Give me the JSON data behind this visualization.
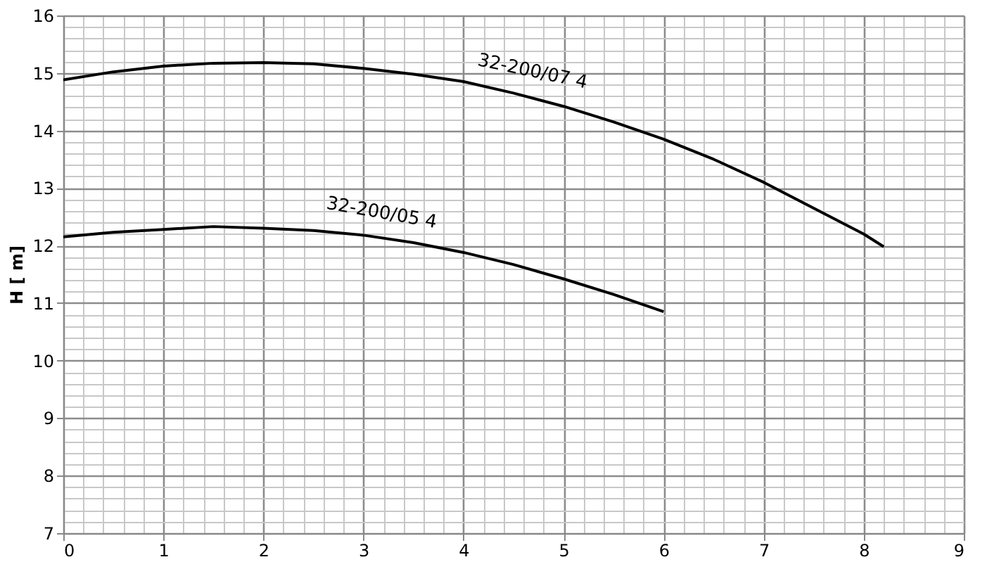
{
  "chart_data": {
    "type": "line",
    "ylabel": "H [ m]",
    "xlim": [
      0,
      9
    ],
    "xticks": [
      0,
      1,
      2,
      3,
      4,
      5,
      6,
      7,
      8,
      9
    ],
    "ylim": [
      7,
      16
    ],
    "yticks": [
      7,
      8,
      9,
      10,
      11,
      12,
      13,
      14,
      15,
      16
    ],
    "grid": true,
    "legend": false,
    "marker": "none",
    "line_style": "solid",
    "series": [
      {
        "name": "32-200/07  4",
        "color": "#000000",
        "x": [
          0,
          0.5,
          1,
          1.5,
          2,
          2.5,
          3,
          3.5,
          4,
          4.5,
          5,
          5.5,
          6,
          6.5,
          7,
          7.5,
          8,
          8.2
        ],
        "values": [
          14.88,
          15.02,
          15.12,
          15.17,
          15.18,
          15.16,
          15.08,
          14.98,
          14.85,
          14.65,
          14.42,
          14.15,
          13.85,
          13.5,
          13.1,
          12.65,
          12.2,
          11.98
        ]
      },
      {
        "name": "32-200/05  4",
        "color": "#000000",
        "x": [
          0,
          0.5,
          1,
          1.5,
          2,
          2.5,
          3,
          3.5,
          4,
          4.5,
          5,
          5.5,
          6
        ],
        "values": [
          12.15,
          12.23,
          12.28,
          12.33,
          12.3,
          12.26,
          12.18,
          12.05,
          11.88,
          11.67,
          11.42,
          11.15,
          10.85
        ]
      }
    ]
  }
}
